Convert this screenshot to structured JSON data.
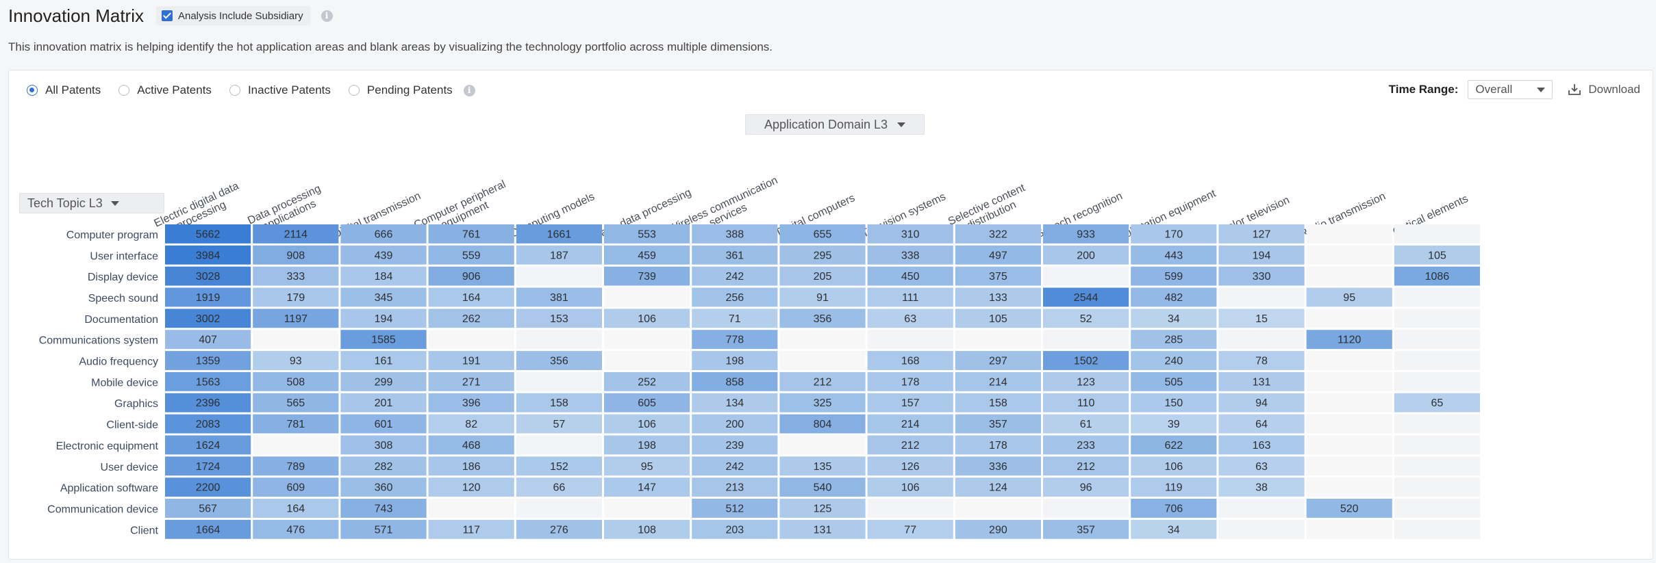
{
  "header": {
    "title": "Innovation Matrix",
    "subsidiary_label": "Analysis Include Subsidiary",
    "subsidiary_checked": true,
    "info_glyph": "i",
    "description": "This innovation matrix is helping identify the hot application areas and blank areas by visualizing the technology portfolio across multiple dimensions."
  },
  "filters": {
    "options": [
      {
        "label": "All Patents",
        "selected": true
      },
      {
        "label": "Active Patents",
        "selected": false
      },
      {
        "label": "Inactive Patents",
        "selected": false
      },
      {
        "label": "Pending Patents",
        "selected": false
      }
    ]
  },
  "toolbar": {
    "time_range_label": "Time Range:",
    "time_range_value": "Overall",
    "download_label": "Download"
  },
  "matrix": {
    "column_selector": "Application Domain L3",
    "row_selector": "Tech Topic L3",
    "columns": [
      [
        "Electric digital data",
        "processing"
      ],
      [
        "Data processing",
        "applications"
      ],
      [
        "Digital transmission"
      ],
      [
        "Computer peripheral",
        "equipment"
      ],
      [
        "Computing models"
      ],
      [
        "Image data processing"
      ],
      [
        "Wireless communication",
        "services"
      ],
      [
        "Digital computers"
      ],
      [
        "Television systems"
      ],
      [
        "Selective content",
        "distribution"
      ],
      [
        "Speech recognition"
      ],
      [
        "Substation equipment"
      ],
      [
        "Color television"
      ],
      [
        "Radio transmission"
      ],
      [
        "Optical elements"
      ]
    ],
    "rows": [
      {
        "label": "Computer program",
        "values": [
          5662,
          2114,
          666,
          761,
          1661,
          553,
          388,
          655,
          310,
          322,
          933,
          170,
          127,
          null,
          null
        ]
      },
      {
        "label": "User interface",
        "values": [
          3984,
          908,
          439,
          559,
          187,
          459,
          361,
          295,
          338,
          497,
          200,
          443,
          194,
          null,
          105
        ]
      },
      {
        "label": "Display device",
        "values": [
          3028,
          333,
          184,
          906,
          null,
          739,
          242,
          205,
          450,
          375,
          null,
          599,
          330,
          null,
          1086
        ]
      },
      {
        "label": "Speech sound",
        "values": [
          1919,
          179,
          345,
          164,
          381,
          null,
          256,
          91,
          111,
          133,
          2544,
          482,
          null,
          95,
          null
        ]
      },
      {
        "label": "Documentation",
        "values": [
          3002,
          1197,
          194,
          262,
          153,
          106,
          71,
          356,
          63,
          105,
          52,
          34,
          15,
          null,
          null
        ]
      },
      {
        "label": "Communications system",
        "values": [
          407,
          null,
          1585,
          null,
          null,
          null,
          778,
          null,
          null,
          null,
          null,
          285,
          null,
          1120,
          null
        ]
      },
      {
        "label": "Audio frequency",
        "values": [
          1359,
          93,
          161,
          191,
          356,
          null,
          198,
          null,
          168,
          297,
          1502,
          240,
          78,
          null,
          null
        ]
      },
      {
        "label": "Mobile device",
        "values": [
          1563,
          508,
          299,
          271,
          null,
          252,
          858,
          212,
          178,
          214,
          123,
          505,
          131,
          null,
          null
        ]
      },
      {
        "label": "Graphics",
        "values": [
          2396,
          565,
          201,
          396,
          158,
          605,
          134,
          325,
          157,
          158,
          110,
          150,
          94,
          null,
          65
        ]
      },
      {
        "label": "Client-side",
        "values": [
          2083,
          781,
          601,
          82,
          57,
          106,
          200,
          804,
          214,
          357,
          61,
          39,
          64,
          null,
          null
        ]
      },
      {
        "label": "Electronic equipment",
        "values": [
          1624,
          null,
          308,
          468,
          null,
          198,
          239,
          null,
          212,
          178,
          233,
          622,
          163,
          null,
          null
        ]
      },
      {
        "label": "User device",
        "values": [
          1724,
          789,
          282,
          186,
          152,
          95,
          242,
          135,
          126,
          336,
          212,
          106,
          63,
          null,
          null
        ]
      },
      {
        "label": "Application software",
        "values": [
          2200,
          609,
          360,
          120,
          66,
          147,
          213,
          540,
          106,
          124,
          96,
          119,
          38,
          null,
          null
        ]
      },
      {
        "label": "Communication device",
        "values": [
          567,
          164,
          743,
          null,
          null,
          null,
          512,
          125,
          null,
          null,
          null,
          706,
          null,
          520,
          null
        ]
      },
      {
        "label": "Client",
        "values": [
          1664,
          476,
          571,
          117,
          276,
          108,
          203,
          131,
          77,
          290,
          357,
          34,
          null,
          null,
          null
        ]
      }
    ]
  },
  "colors": {
    "accent": "#2f6fd6",
    "empty_cell": "#f3f4f6",
    "empty_cell_alt": "#f7f7f8"
  },
  "icons": {
    "checkbox": "checkbox-checked-icon",
    "info": "info-icon",
    "dropdown": "caret-down-icon",
    "download": "download-icon"
  }
}
